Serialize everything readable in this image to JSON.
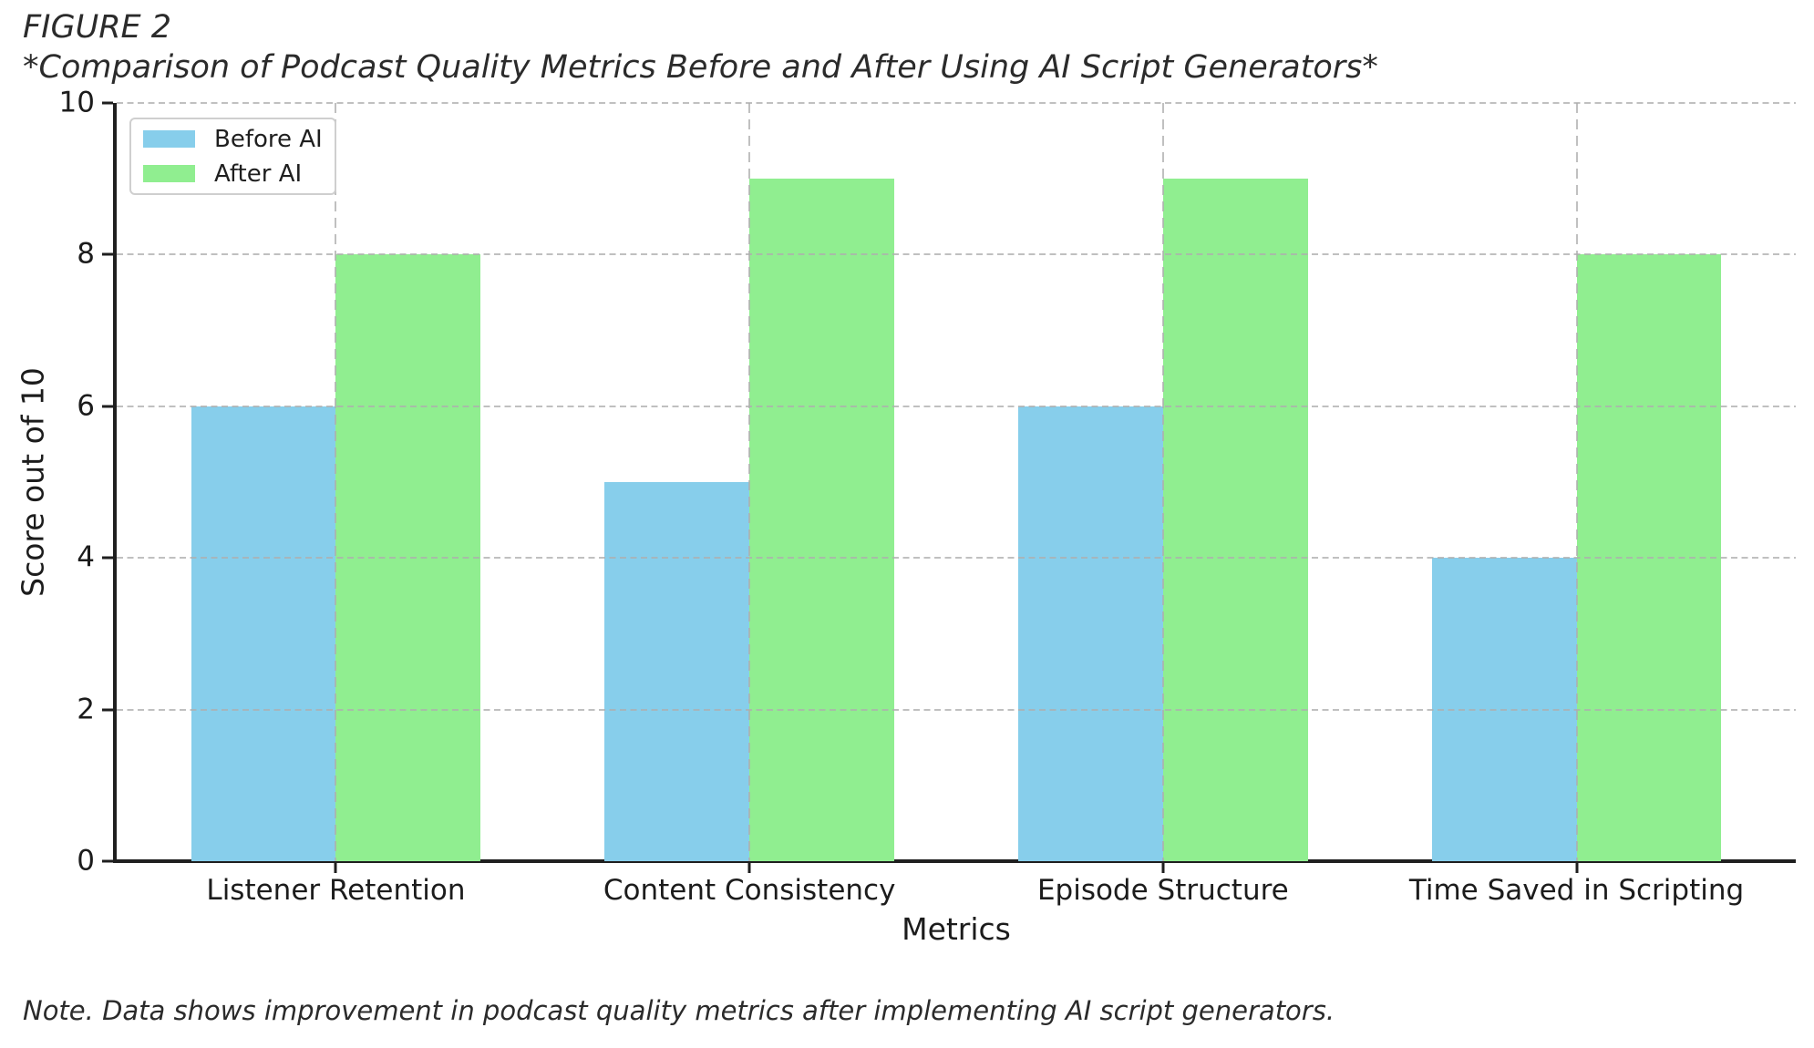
{
  "header": {
    "figure_label": "FIGURE 2",
    "title": "*Comparison of Podcast Quality Metrics Before and After Using AI Script Generators*"
  },
  "chart_data": {
    "type": "bar",
    "title": "Comparison of Podcast Quality Metrics Before and After Using AI Script Generators",
    "categories": [
      "Listener Retention",
      "Content Consistency",
      "Episode Structure",
      "Time Saved in Scripting"
    ],
    "series": [
      {
        "name": "Before AI",
        "color": "#87CEEB",
        "values": [
          6,
          5,
          6,
          4
        ]
      },
      {
        "name": "After AI",
        "color": "#90EE90",
        "values": [
          8,
          9,
          9,
          8
        ]
      }
    ],
    "xlabel": "Metrics",
    "ylabel": "Score out of 10",
    "ylim": [
      0,
      10
    ],
    "yticks": [
      0,
      2,
      4,
      6,
      8,
      10
    ],
    "bar_width": 0.35,
    "grid": "dashed",
    "grid_over_bars": true,
    "legend_position": "upper left"
  },
  "footnote": {
    "text": "Note. Data shows improvement in podcast quality metrics after implementing AI script generators."
  }
}
